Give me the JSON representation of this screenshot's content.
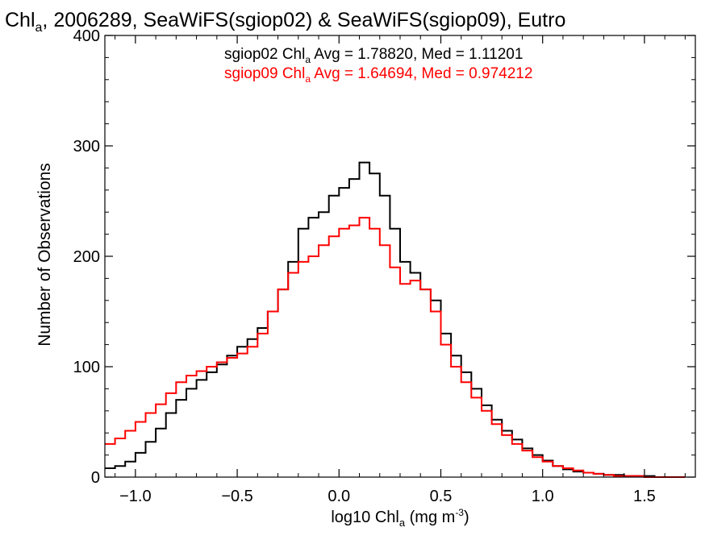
{
  "chart_data": {
    "type": "line",
    "style": "histogram-steps",
    "title": {
      "prefix": "Chl",
      "sub": "a",
      "rest": ", 2006289, SeaWiFS(sgiop02) & SeaWiFS(sgiop09), Eutro"
    },
    "xlabel": {
      "prefix": "log10 Chl",
      "sub": "a",
      "units": " (mg m",
      "sup": "-3",
      "close": ")"
    },
    "ylabel": "Number of Observations",
    "xlim": [
      -1.15,
      1.75
    ],
    "ylim": [
      0,
      400
    ],
    "xticks": [
      {
        "v": -1.0,
        "label": "−1.0"
      },
      {
        "v": -0.5,
        "label": "−0.5"
      },
      {
        "v": 0.0,
        "label": "0.0"
      },
      {
        "v": 0.5,
        "label": "0.5"
      },
      {
        "v": 1.0,
        "label": "1.0"
      },
      {
        "v": 1.5,
        "label": "1.5"
      }
    ],
    "yticks": [
      {
        "v": 0,
        "label": "0"
      },
      {
        "v": 100,
        "label": "100"
      },
      {
        "v": 200,
        "label": "200"
      },
      {
        "v": 300,
        "label": "300"
      },
      {
        "v": 400,
        "label": "400"
      }
    ],
    "grid": false,
    "legend": [
      {
        "pre": "sgiop02 Chl",
        "sub": "a",
        "post": " Avg = 1.78820, Med = 1.11201",
        "color": "#000000"
      },
      {
        "pre": "sgiop09 Chl",
        "sub": "a",
        "post": " Avg = 1.64694, Med = 0.974212",
        "color": "#ff0000"
      }
    ],
    "series": [
      {
        "name": "sgiop02",
        "color": "#000000",
        "x": [
          -1.15,
          -1.1,
          -1.05,
          -1.0,
          -0.95,
          -0.9,
          -0.85,
          -0.8,
          -0.75,
          -0.7,
          -0.65,
          -0.6,
          -0.55,
          -0.5,
          -0.45,
          -0.4,
          -0.35,
          -0.3,
          -0.25,
          -0.2,
          -0.15,
          -0.1,
          -0.05,
          0.0,
          0.05,
          0.1,
          0.15,
          0.2,
          0.25,
          0.3,
          0.35,
          0.4,
          0.45,
          0.5,
          0.55,
          0.6,
          0.65,
          0.7,
          0.75,
          0.8,
          0.85,
          0.9,
          0.95,
          1.0,
          1.05,
          1.1,
          1.15,
          1.2,
          1.25,
          1.3,
          1.35,
          1.4,
          1.45,
          1.5,
          1.55,
          1.6,
          1.65
        ],
        "y": [
          8,
          10,
          14,
          22,
          32,
          44,
          58,
          70,
          80,
          88,
          95,
          102,
          110,
          118,
          125,
          135,
          150,
          170,
          195,
          225,
          235,
          240,
          255,
          262,
          270,
          285,
          275,
          255,
          225,
          195,
          185,
          170,
          160,
          130,
          110,
          95,
          80,
          65,
          52,
          42,
          34,
          26,
          20,
          15,
          10,
          7,
          5,
          4,
          3,
          2,
          2,
          1,
          1,
          1,
          0,
          0,
          0
        ]
      },
      {
        "name": "sgiop09",
        "color": "#ff0000",
        "x": [
          -1.15,
          -1.1,
          -1.05,
          -1.0,
          -0.95,
          -0.9,
          -0.85,
          -0.8,
          -0.75,
          -0.7,
          -0.65,
          -0.6,
          -0.55,
          -0.5,
          -0.45,
          -0.4,
          -0.35,
          -0.3,
          -0.25,
          -0.2,
          -0.15,
          -0.1,
          -0.05,
          0.0,
          0.05,
          0.1,
          0.15,
          0.2,
          0.25,
          0.3,
          0.35,
          0.4,
          0.45,
          0.5,
          0.55,
          0.6,
          0.65,
          0.7,
          0.75,
          0.8,
          0.85,
          0.9,
          0.95,
          1.0,
          1.05,
          1.1,
          1.15,
          1.2,
          1.25,
          1.3,
          1.35,
          1.4,
          1.45,
          1.5,
          1.55,
          1.6,
          1.65
        ],
        "y": [
          30,
          35,
          42,
          50,
          58,
          66,
          76,
          86,
          92,
          96,
          100,
          104,
          108,
          112,
          118,
          130,
          150,
          170,
          185,
          195,
          200,
          210,
          218,
          225,
          228,
          235,
          225,
          210,
          190,
          175,
          178,
          170,
          150,
          120,
          100,
          86,
          72,
          60,
          48,
          38,
          30,
          24,
          18,
          14,
          10,
          8,
          6,
          4,
          3,
          2,
          1,
          1,
          1,
          0,
          0,
          0,
          0
        ]
      }
    ]
  }
}
